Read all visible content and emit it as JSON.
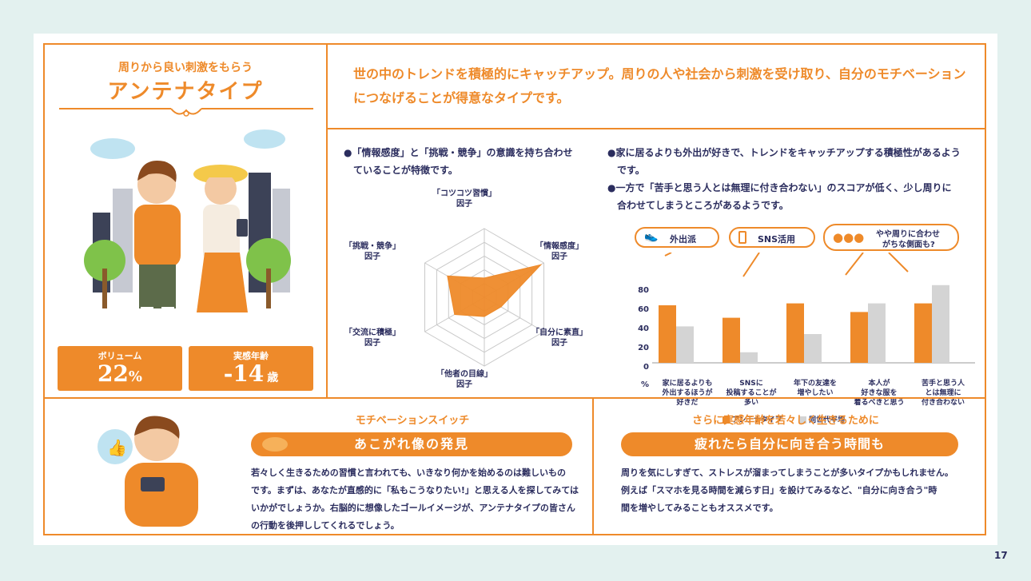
{
  "type_card": {
    "subtitle": "周りから良い刺激をもらう",
    "title": "アンテナタイプ",
    "volume_label": "ボリューム",
    "volume_value": "22",
    "volume_unit": "%",
    "age_label": "実感年齢",
    "age_value": "-14",
    "age_unit": "歳"
  },
  "description": "世の中のトレンドを積極的にキャッチアップ。周りの人や社会から刺激を受け取り、自分のモチベーションにつなげることが得意なタイプです。",
  "radar": {
    "note_line1": "●「情報感度」と「挑戦・競争」の意識を持ち合わせ",
    "note_line2": "ていることが特徴です。",
    "factors": [
      {
        "line1": "「コツコツ習慣」",
        "line2": "因子"
      },
      {
        "line1": "「情報感度」",
        "line2": "因子"
      },
      {
        "line1": "「自分に素直」",
        "line2": "因子"
      },
      {
        "line1": "「他者の目線」",
        "line2": "因子"
      },
      {
        "line1": "「交流に積極」",
        "line2": "因子"
      },
      {
        "line1": "「挑戦・競争」",
        "line2": "因子"
      }
    ],
    "values": [
      0.28,
      0.95,
      0.28,
      0.28,
      0.5,
      0.62
    ]
  },
  "bar_notes": {
    "line1": "●家に居るよりも外出が好きで、トレンドをキャッチアップする積極性があるよう",
    "line2": "です。",
    "line3": "●一方で「苦手と思う人とは無理に付き合わない」のスコアが低く、少し周りに",
    "line4": "合わせてしまうところがあるようです。"
  },
  "badges": {
    "b1": "外出派",
    "b2": "SNS活用",
    "b3_line1": "やや周りに合わせ",
    "b3_line2": "がちな側面も?"
  },
  "chart_data": {
    "type": "bar",
    "categories": [
      [
        "家に居るよりも",
        "外出するほうが",
        "好きだ"
      ],
      [
        "SNSに",
        "投稿することが",
        "多い"
      ],
      [
        "年下の友達を",
        "増やしたい"
      ],
      [
        "本人が",
        "好きな服を",
        "着るべきと思う"
      ],
      [
        "苦手と思う人",
        "とは無理に",
        "付き合わない"
      ]
    ],
    "series": [
      {
        "name": "アンテナタイプ",
        "values": [
          60,
          47,
          62,
          53,
          62
        ],
        "color": "#ee8a2a"
      },
      {
        "name": "同世代平均",
        "values": [
          38,
          11,
          30,
          62,
          81
        ],
        "color": "#d4d4d4"
      }
    ],
    "yticks": [
      "80",
      "60",
      "40",
      "20",
      "0"
    ],
    "yunit": "%",
    "ylim": [
      0,
      80
    ]
  },
  "motivation": {
    "heading": "モチベーションスイッチ",
    "pill": "あこがれ像の発見",
    "lines": [
      "若々しく生きるための習慣と言われても、いきなり何かを始めるのは難しいもの",
      "です。まずは、あなたが直感的に「私もこうなりたい!」と思える人を探してみては",
      "いかがでしょうか。右脳的に想像したゴールイメージが、アンテナタイプの皆さん",
      "の行動を後押ししてくれるでしょう。"
    ]
  },
  "younger": {
    "heading": "さらに実感年齢を若々しく生きるために",
    "pill": "疲れたら自分に向き合う時間も",
    "lines": [
      "周りを気にしすぎて、ストレスが溜まってしまうことが多いタイプかもしれません。",
      "例えば「スマホを見る時間を減らす日」を設けてみるなど、\"自分に向き合う\"時",
      "間を増やしてみることもオススメです。"
    ]
  },
  "page_number": "17"
}
